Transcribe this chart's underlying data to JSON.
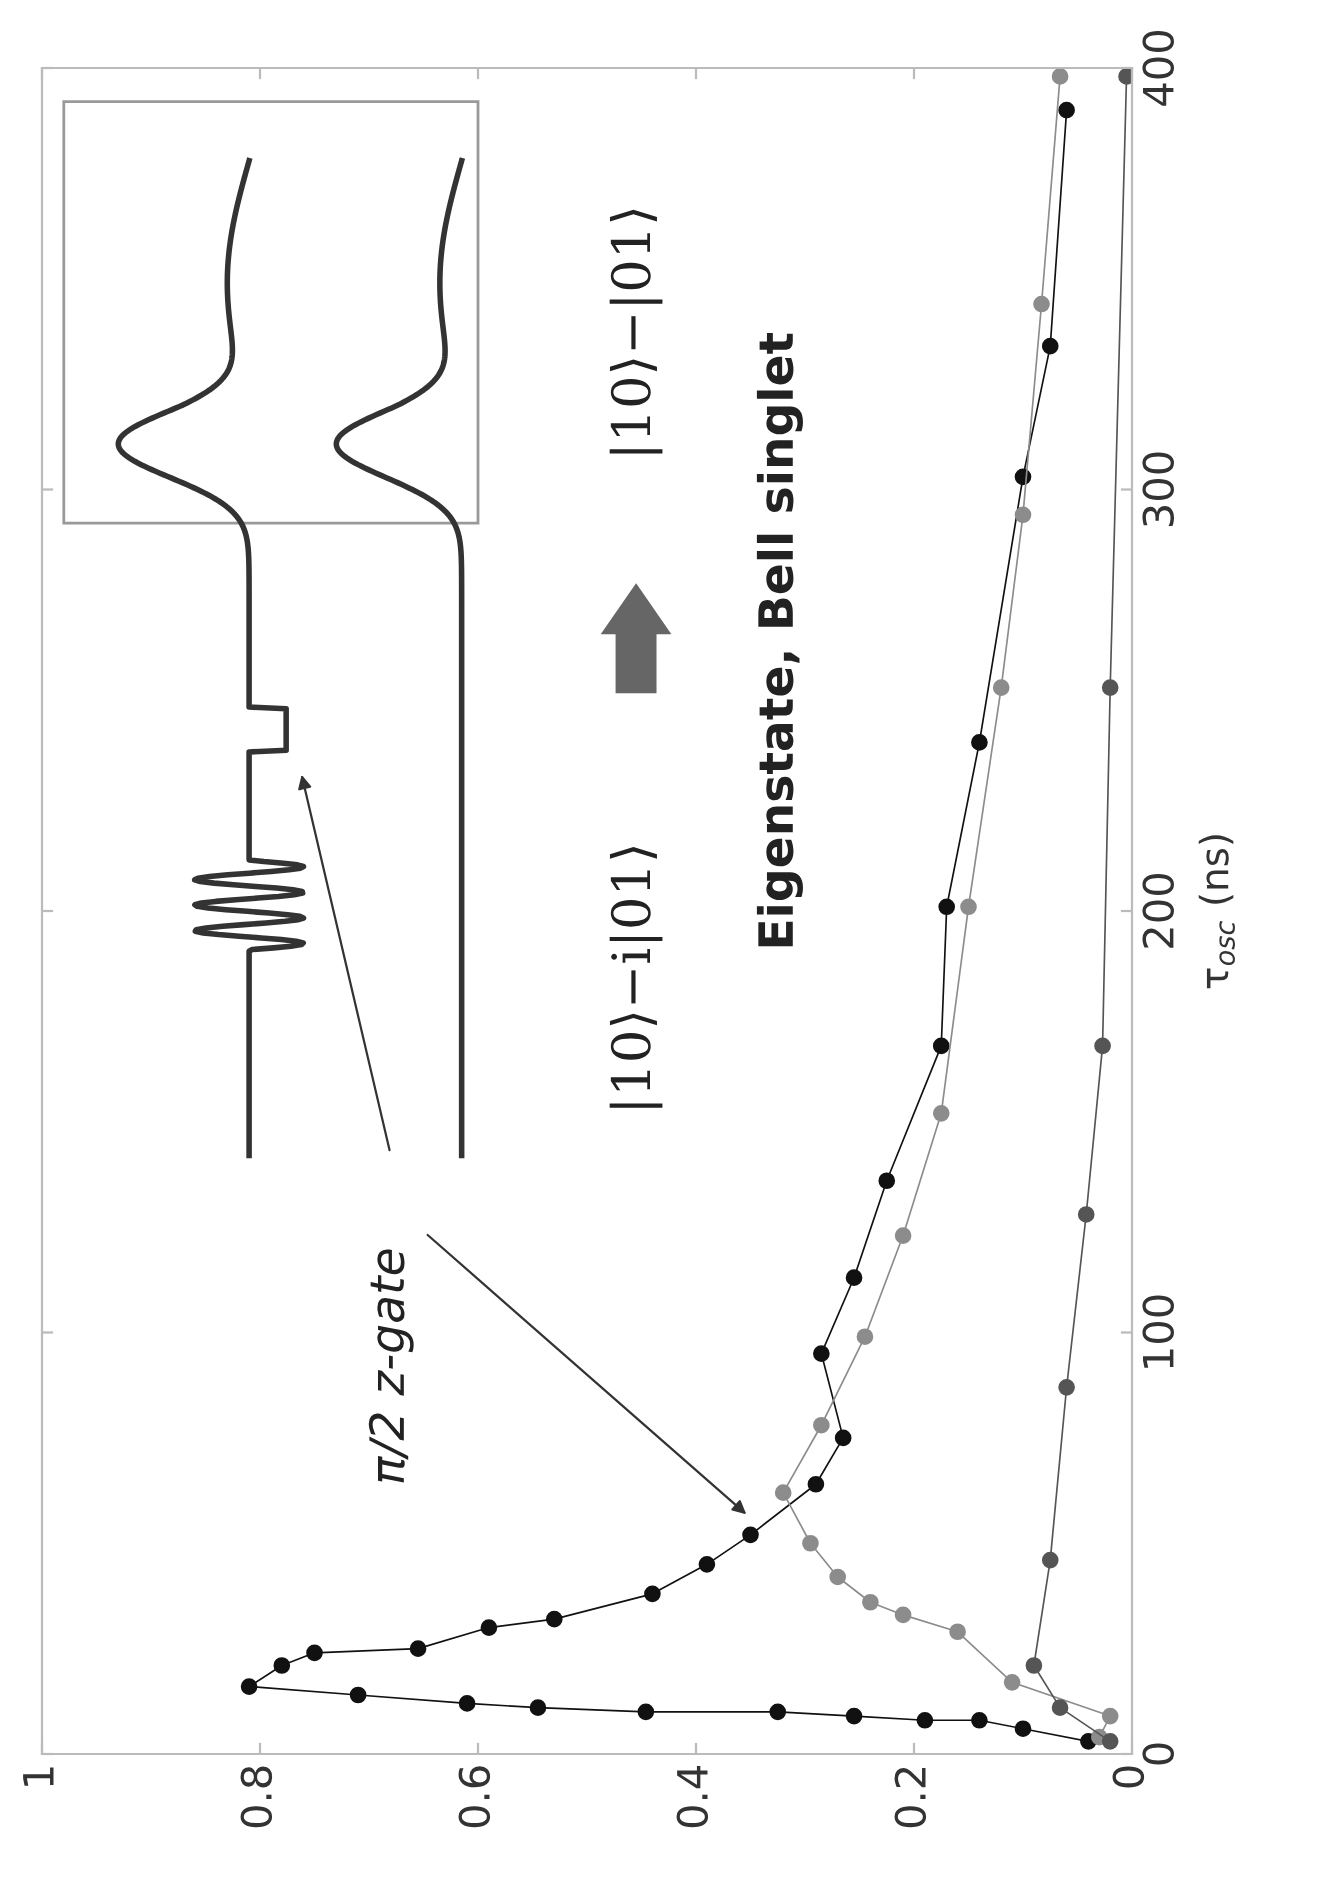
{
  "chart_data": {
    "type": "line",
    "ylabel": "τ$_{osc}$ (ns)",
    "ylim": [
      0,
      400
    ],
    "yticks": [
      0,
      100,
      200,
      300,
      400
    ],
    "xlim": [
      1,
      0
    ],
    "xticks": [
      1,
      0.8,
      0.6,
      0.4,
      0.2,
      0
    ],
    "marker": "circle",
    "line_style": "solid",
    "grid": false,
    "series": [
      {
        "color": "#111111",
        "values": [
          3,
          6,
          8,
          8,
          9,
          10,
          10,
          11,
          12,
          14,
          16,
          21,
          24,
          25,
          30,
          32,
          38,
          45,
          52,
          64,
          75,
          95,
          113,
          136,
          168,
          201,
          240,
          303,
          334,
          390
        ],
        "x": [
          0.04,
          0.1,
          0.14,
          0.19,
          0.255,
          0.325,
          0.446,
          0.545,
          0.61,
          0.71,
          0.81,
          0.78,
          0.75,
          0.655,
          0.59,
          0.53,
          0.44,
          0.39,
          0.35,
          0.29,
          0.265,
          0.285,
          0.255,
          0.225,
          0.175,
          0.17,
          0.14,
          0.1,
          0.075,
          0.06
        ]
      },
      {
        "color": "#8c8c8c",
        "values": [
          4,
          9,
          17,
          29,
          33,
          36,
          42,
          50,
          62,
          78,
          99,
          123,
          152,
          201,
          253,
          294,
          344,
          398
        ],
        "x": [
          0.03,
          0.02,
          0.11,
          0.16,
          0.21,
          0.24,
          0.27,
          0.295,
          0.32,
          0.285,
          0.245,
          0.21,
          0.175,
          0.15,
          0.12,
          0.1,
          0.083,
          0.066
        ]
      },
      {
        "color": "#555555",
        "values": [
          3,
          11,
          21,
          46,
          87,
          128,
          168,
          253,
          398
        ],
        "x": [
          0.02,
          0.066,
          0.09,
          0.075,
          0.06,
          0.042,
          0.027,
          0.02,
          0.005
        ]
      }
    ],
    "annotations": [
      "π/2 z-gate",
      "|10⟩−i|01⟩",
      "|10⟩−|01⟩",
      "Eigenstate, Bell singlet"
    ]
  }
}
